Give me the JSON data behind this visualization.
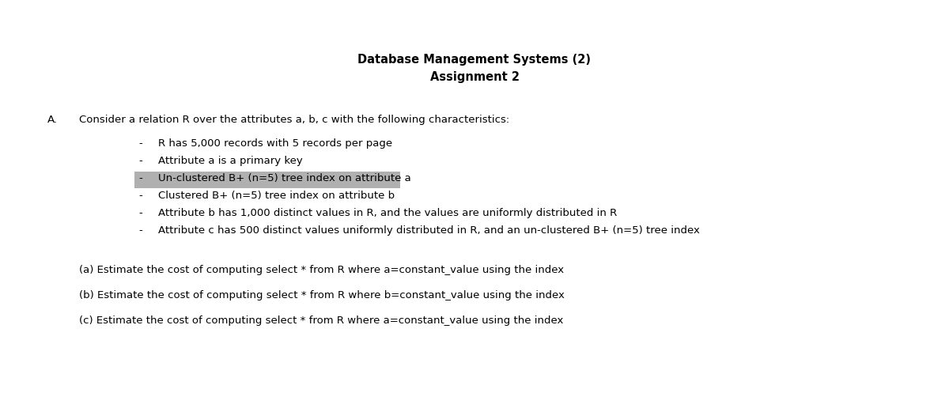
{
  "title_line1": "Database Management Systems (2)",
  "title_line2": "Assignment 2",
  "section_label": "A.",
  "section_intro": "Consider a relation R over the attributes a, b, c with the following characteristics:",
  "bullets": [
    "R has 5,000 records with 5 records per page",
    "Attribute a is a primary key",
    "Un-clustered B+ (n=5) tree index on attribute a",
    "Clustered B+ (n=5) tree index on attribute b",
    "Attribute b has 1,000 distinct values in R, and the values are uniformly distributed in R",
    "Attribute c has 500 distinct values uniformly distributed in R, and an un-clustered B+ (n=5) tree index"
  ],
  "highlighted_bullet_index": 2,
  "highlight_color": "#b0b0b0",
  "questions": [
    "(a) Estimate the cost of computing select * from R where a=constant_value using the index",
    "(b) Estimate the cost of computing select * from R where b=constant_value using the index",
    "(c) Estimate the cost of computing select * from R where a=constant_value using the index"
  ],
  "bg_color": "#ffffff",
  "text_color": "#000000",
  "font_size_title": 10.5,
  "font_size_body": 9.5,
  "fig_width": 12.0,
  "fig_height": 4.97,
  "dpi": 100
}
